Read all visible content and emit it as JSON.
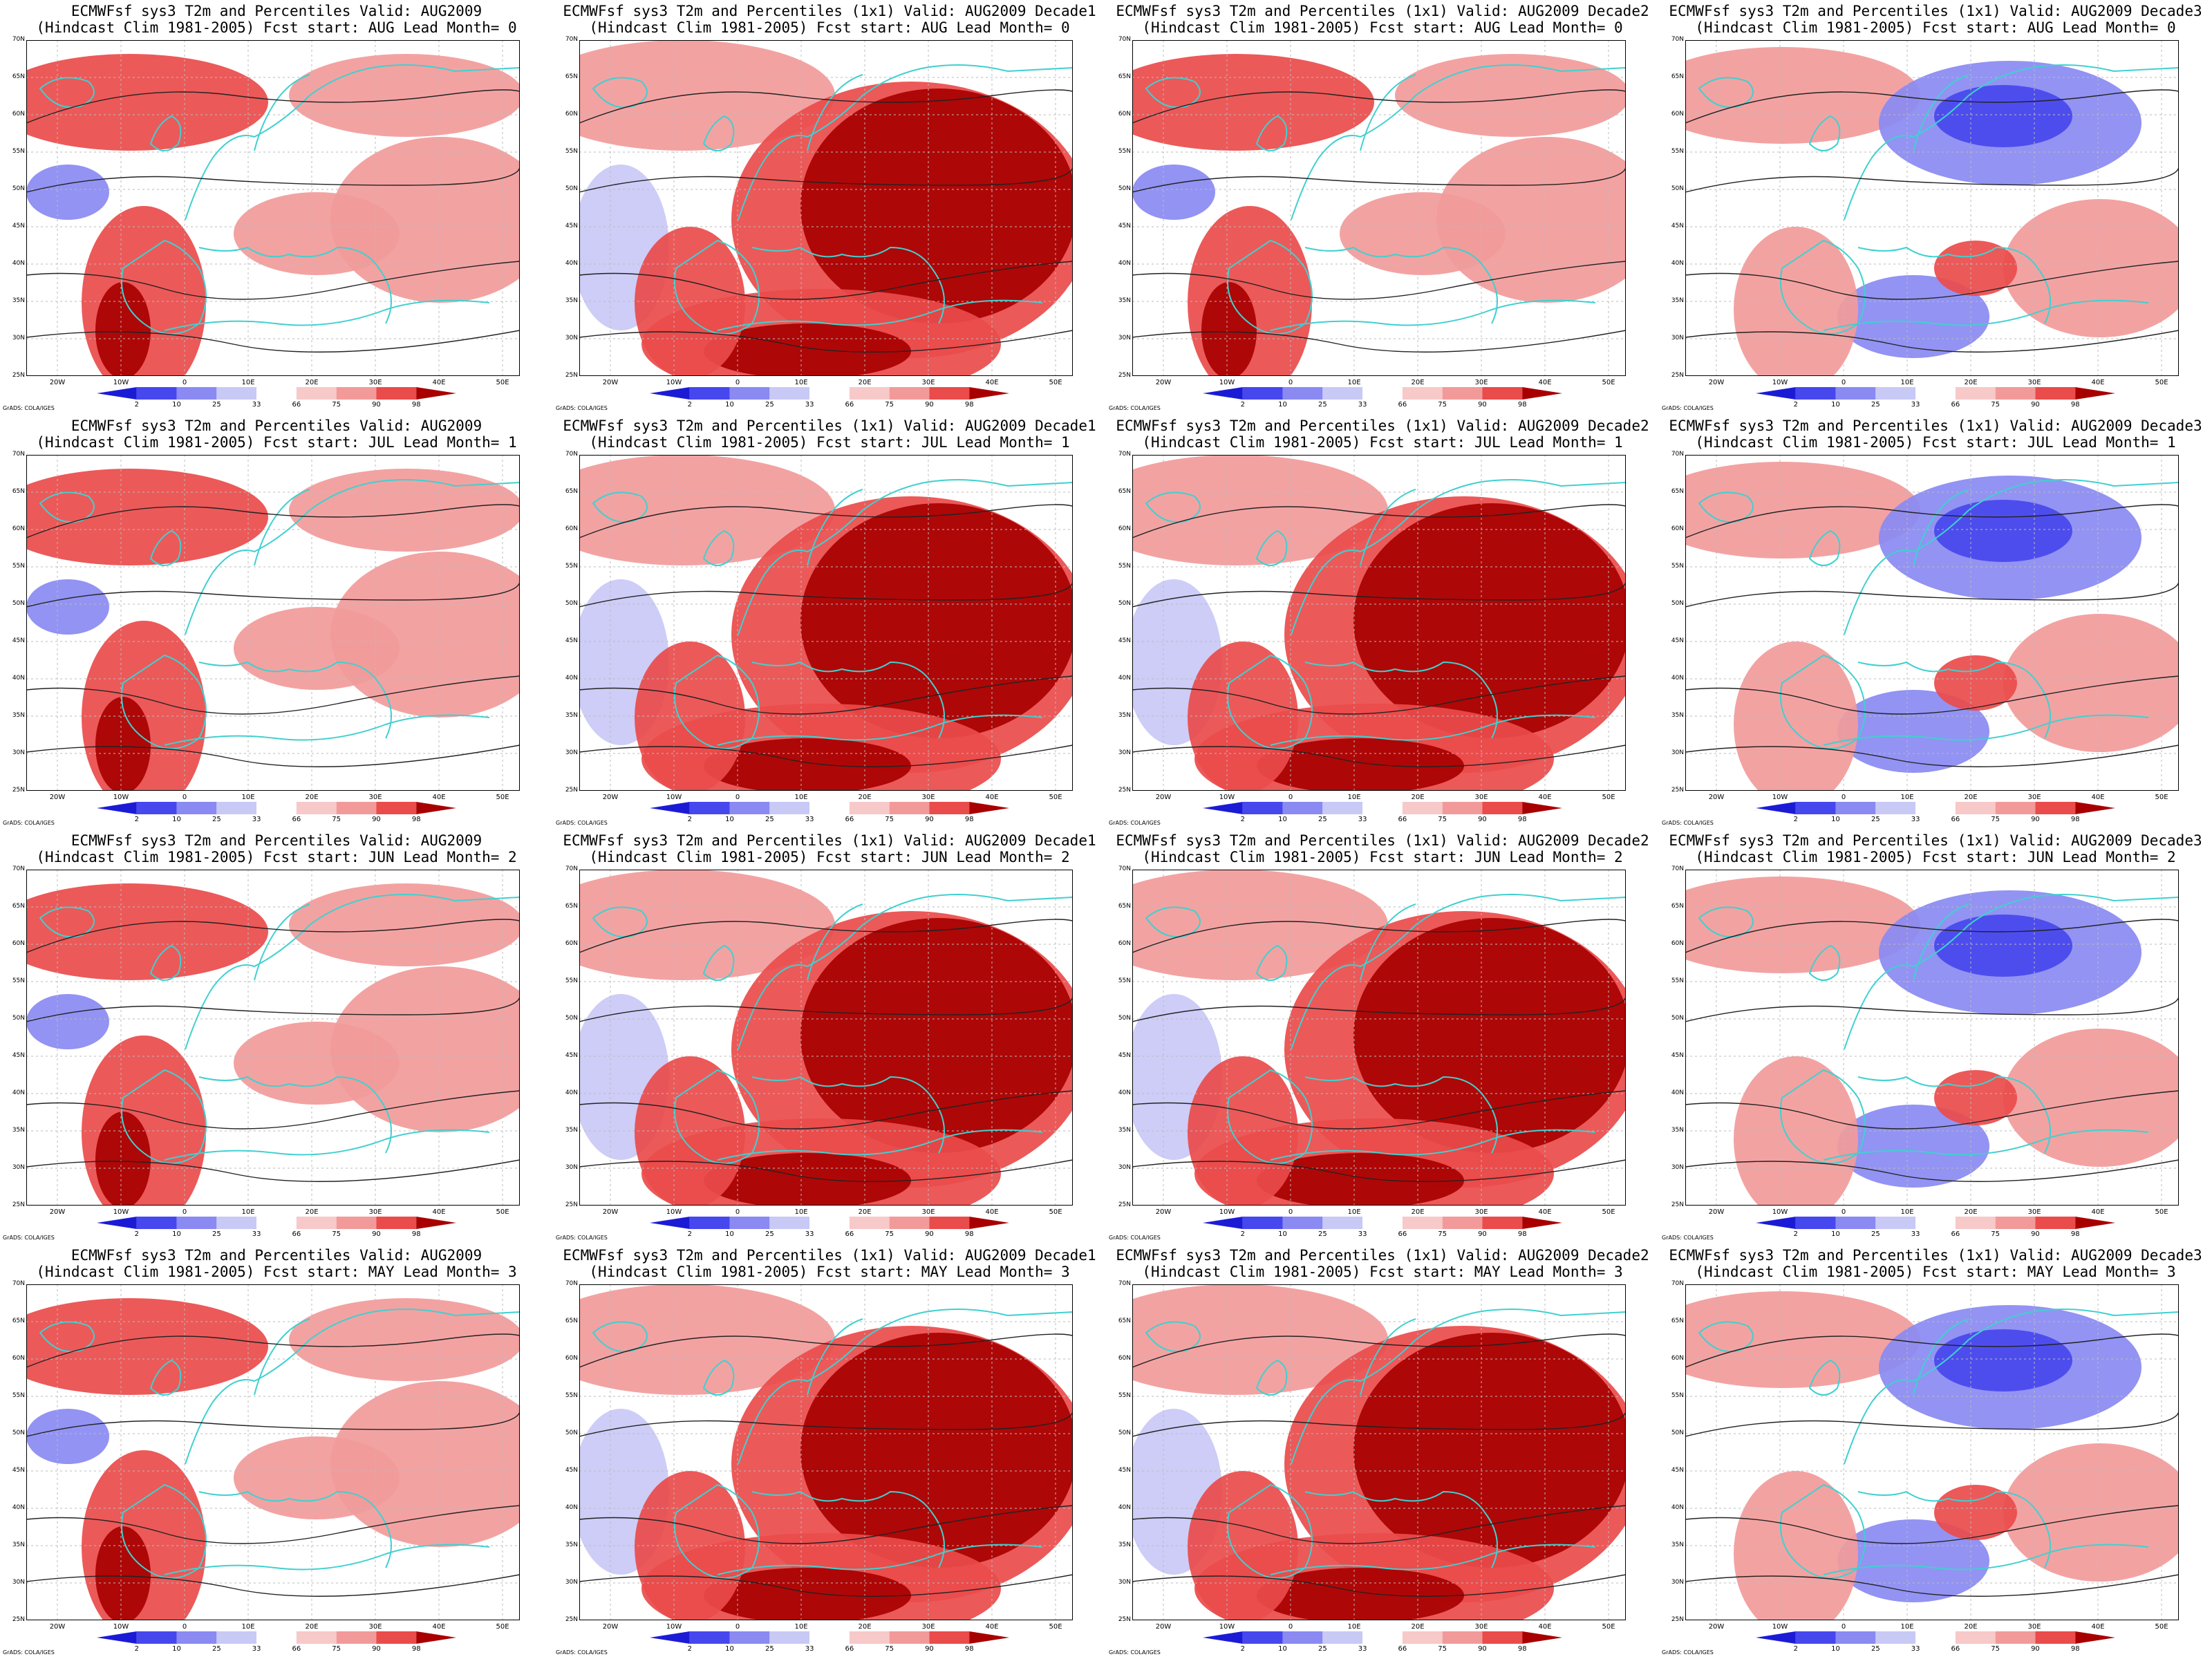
{
  "common": {
    "lat_labels": [
      "70N",
      "65N",
      "60N",
      "55N",
      "50N",
      "45N",
      "40N",
      "35N",
      "30N",
      "25N"
    ],
    "lon_labels": [
      "20W",
      "10W",
      "0",
      "10E",
      "20E",
      "30E",
      "40E",
      "50E"
    ],
    "colorbar_labels": [
      "2",
      "10",
      "25",
      "33",
      "66",
      "75",
      "90",
      "98"
    ],
    "colorbar_colors": [
      "#1b1bd6",
      "#4747ee",
      "#8a8af2",
      "#c9c9f6",
      "#ffffff",
      "#f7c9c9",
      "#f29a9a",
      "#ea4b4b",
      "#a80000"
    ],
    "credit": "GrADS: COLA/IGES",
    "colors": {
      "land_outline": "#40d0d0",
      "isoline": "#222222",
      "warm": "#e84a4a",
      "cold": "#4747ee"
    }
  },
  "panels": [
    {
      "title1": "ECMWFsf sys3  T2m and Percentiles Valid: AUG2009",
      "title2": "(Hindcast Clim 1981-2005) Fcst start: AUG  Lead Month= 0",
      "regime": "warm"
    },
    {
      "title1": "ECMWFsf sys3  T2m and Percentiles (1x1) Valid: AUG2009 Decade1",
      "title2": "(Hindcast Clim 1981-2005) Fcst start: AUG  Lead Month= 0",
      "regime": "hot"
    },
    {
      "title1": "ECMWFsf sys3  T2m and Percentiles (1x1) Valid: AUG2009 Decade2",
      "title2": "(Hindcast Clim 1981-2005) Fcst start: AUG  Lead Month= 0",
      "regime": "warm"
    },
    {
      "title1": "ECMWFsf sys3  T2m and Percentiles (1x1) Valid: AUG2009 Decade3",
      "title2": "(Hindcast Clim 1981-2005) Fcst start: AUG  Lead Month= 0",
      "regime": "cold"
    },
    {
      "title1": "ECMWFsf sys3  T2m and Percentiles Valid: AUG2009",
      "title2": "(Hindcast Clim 1981-2005) Fcst start: JUL  Lead Month= 1",
      "regime": "warm"
    },
    {
      "title1": "ECMWFsf sys3  T2m and Percentiles (1x1) Valid: AUG2009 Decade1",
      "title2": "(Hindcast Clim 1981-2005) Fcst start: JUL  Lead Month= 1",
      "regime": "hot"
    },
    {
      "title1": "ECMWFsf sys3  T2m and Percentiles (1x1) Valid: AUG2009 Decade2",
      "title2": "(Hindcast Clim 1981-2005) Fcst start: JUL  Lead Month= 1",
      "regime": "hot"
    },
    {
      "title1": "ECMWFsf sys3  T2m and Percentiles (1x1) Valid: AUG2009 Decade3",
      "title2": "(Hindcast Clim 1981-2005) Fcst start: JUL  Lead Month= 1",
      "regime": "cold"
    },
    {
      "title1": "ECMWFsf sys3  T2m and Percentiles Valid: AUG2009",
      "title2": "(Hindcast Clim 1981-2005) Fcst start: JUN  Lead Month= 2",
      "regime": "warm"
    },
    {
      "title1": "ECMWFsf sys3  T2m and Percentiles (1x1) Valid: AUG2009 Decade1",
      "title2": "(Hindcast Clim 1981-2005) Fcst start: JUN  Lead Month= 2",
      "regime": "hot"
    },
    {
      "title1": "ECMWFsf sys3  T2m and Percentiles (1x1) Valid: AUG2009 Decade2",
      "title2": "(Hindcast Clim 1981-2005) Fcst start: JUN  Lead Month= 2",
      "regime": "hot"
    },
    {
      "title1": "ECMWFsf sys3  T2m and Percentiles (1x1) Valid: AUG2009 Decade3",
      "title2": "(Hindcast Clim 1981-2005) Fcst start: JUN  Lead Month= 2",
      "regime": "cold"
    },
    {
      "title1": "ECMWFsf sys3  T2m and Percentiles Valid: AUG2009",
      "title2": "(Hindcast Clim 1981-2005) Fcst start: MAY  Lead Month= 3",
      "regime": "warm"
    },
    {
      "title1": "ECMWFsf sys3  T2m and Percentiles (1x1) Valid: AUG2009 Decade1",
      "title2": "(Hindcast Clim 1981-2005) Fcst start: MAY  Lead Month= 3",
      "regime": "hot"
    },
    {
      "title1": "ECMWFsf sys3  T2m and Percentiles (1x1) Valid: AUG2009 Decade2",
      "title2": "(Hindcast Clim 1981-2005) Fcst start: MAY  Lead Month= 3",
      "regime": "hot"
    },
    {
      "title1": "ECMWFsf sys3  T2m and Percentiles (1x1) Valid: AUG2009 Decade3",
      "title2": "(Hindcast Clim 1981-2005) Fcst start: MAY  Lead Month= 3",
      "regime": "cold"
    }
  ]
}
